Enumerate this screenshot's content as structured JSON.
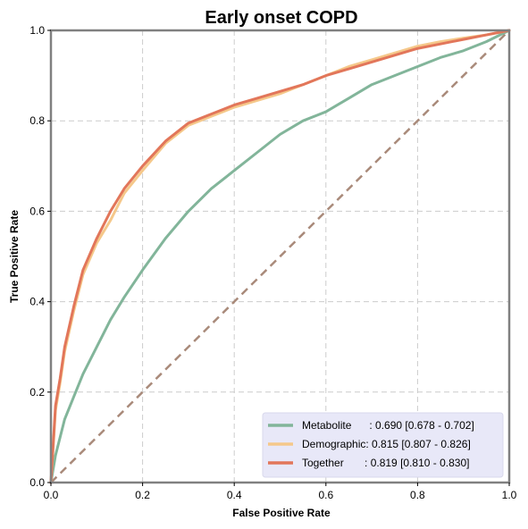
{
  "chart_data": {
    "type": "line",
    "title": "Early onset COPD",
    "xlabel": "False Positive Rate",
    "ylabel": "True Positive Rate",
    "xlim": [
      0.0,
      1.0
    ],
    "ylim": [
      0.0,
      1.0
    ],
    "x_ticks": [
      "0.0",
      "0.2",
      "0.4",
      "0.6",
      "0.8",
      "1.0"
    ],
    "y_ticks": [
      "0.0",
      "0.2",
      "0.4",
      "0.6",
      "0.8",
      "1.0"
    ],
    "grid": true,
    "legend_position": "bottom-right",
    "colors": {
      "Metabolite": "#82b59a",
      "Demographic": "#f5c88a",
      "Together": "#e2765a",
      "reference": "#a98a7a",
      "frame": "#808080",
      "legend_bg": "#e8e8f8"
    },
    "series": [
      {
        "name": "Metabolite",
        "legend_text": "Metabolite      : 0.690 [0.678 - 0.702]",
        "x": [
          0,
          0.01,
          0.02,
          0.03,
          0.05,
          0.07,
          0.1,
          0.13,
          0.16,
          0.2,
          0.25,
          0.3,
          0.35,
          0.4,
          0.45,
          0.5,
          0.55,
          0.6,
          0.65,
          0.7,
          0.75,
          0.8,
          0.85,
          0.9,
          0.95,
          1.0
        ],
        "y": [
          0,
          0.06,
          0.1,
          0.14,
          0.19,
          0.24,
          0.3,
          0.36,
          0.41,
          0.47,
          0.54,
          0.6,
          0.65,
          0.69,
          0.73,
          0.77,
          0.8,
          0.82,
          0.85,
          0.88,
          0.9,
          0.92,
          0.94,
          0.955,
          0.975,
          1.0
        ]
      },
      {
        "name": "Demographic",
        "legend_text": "Demographic: 0.815 [0.807 - 0.826]",
        "x": [
          0,
          0.01,
          0.02,
          0.03,
          0.05,
          0.07,
          0.1,
          0.13,
          0.16,
          0.2,
          0.25,
          0.3,
          0.35,
          0.4,
          0.45,
          0.5,
          0.55,
          0.6,
          0.65,
          0.7,
          0.75,
          0.8,
          0.85,
          0.9,
          0.95,
          1.0
        ],
        "y": [
          0,
          0.16,
          0.22,
          0.29,
          0.38,
          0.46,
          0.53,
          0.58,
          0.64,
          0.69,
          0.75,
          0.79,
          0.81,
          0.83,
          0.845,
          0.86,
          0.88,
          0.9,
          0.92,
          0.935,
          0.95,
          0.965,
          0.975,
          0.983,
          0.99,
          1.0
        ]
      },
      {
        "name": "Together",
        "legend_text": "Together       : 0.819 [0.810 - 0.830]",
        "x": [
          0,
          0.01,
          0.02,
          0.03,
          0.05,
          0.07,
          0.1,
          0.13,
          0.16,
          0.2,
          0.25,
          0.3,
          0.35,
          0.4,
          0.45,
          0.5,
          0.55,
          0.6,
          0.65,
          0.7,
          0.75,
          0.8,
          0.85,
          0.9,
          0.95,
          1.0
        ],
        "y": [
          0,
          0.17,
          0.23,
          0.3,
          0.39,
          0.47,
          0.54,
          0.6,
          0.65,
          0.7,
          0.755,
          0.795,
          0.815,
          0.835,
          0.85,
          0.865,
          0.88,
          0.9,
          0.915,
          0.93,
          0.945,
          0.96,
          0.97,
          0.98,
          0.99,
          1.0
        ]
      }
    ],
    "reference_line": {
      "x": [
        0,
        1
      ],
      "y": [
        0,
        1
      ]
    }
  }
}
